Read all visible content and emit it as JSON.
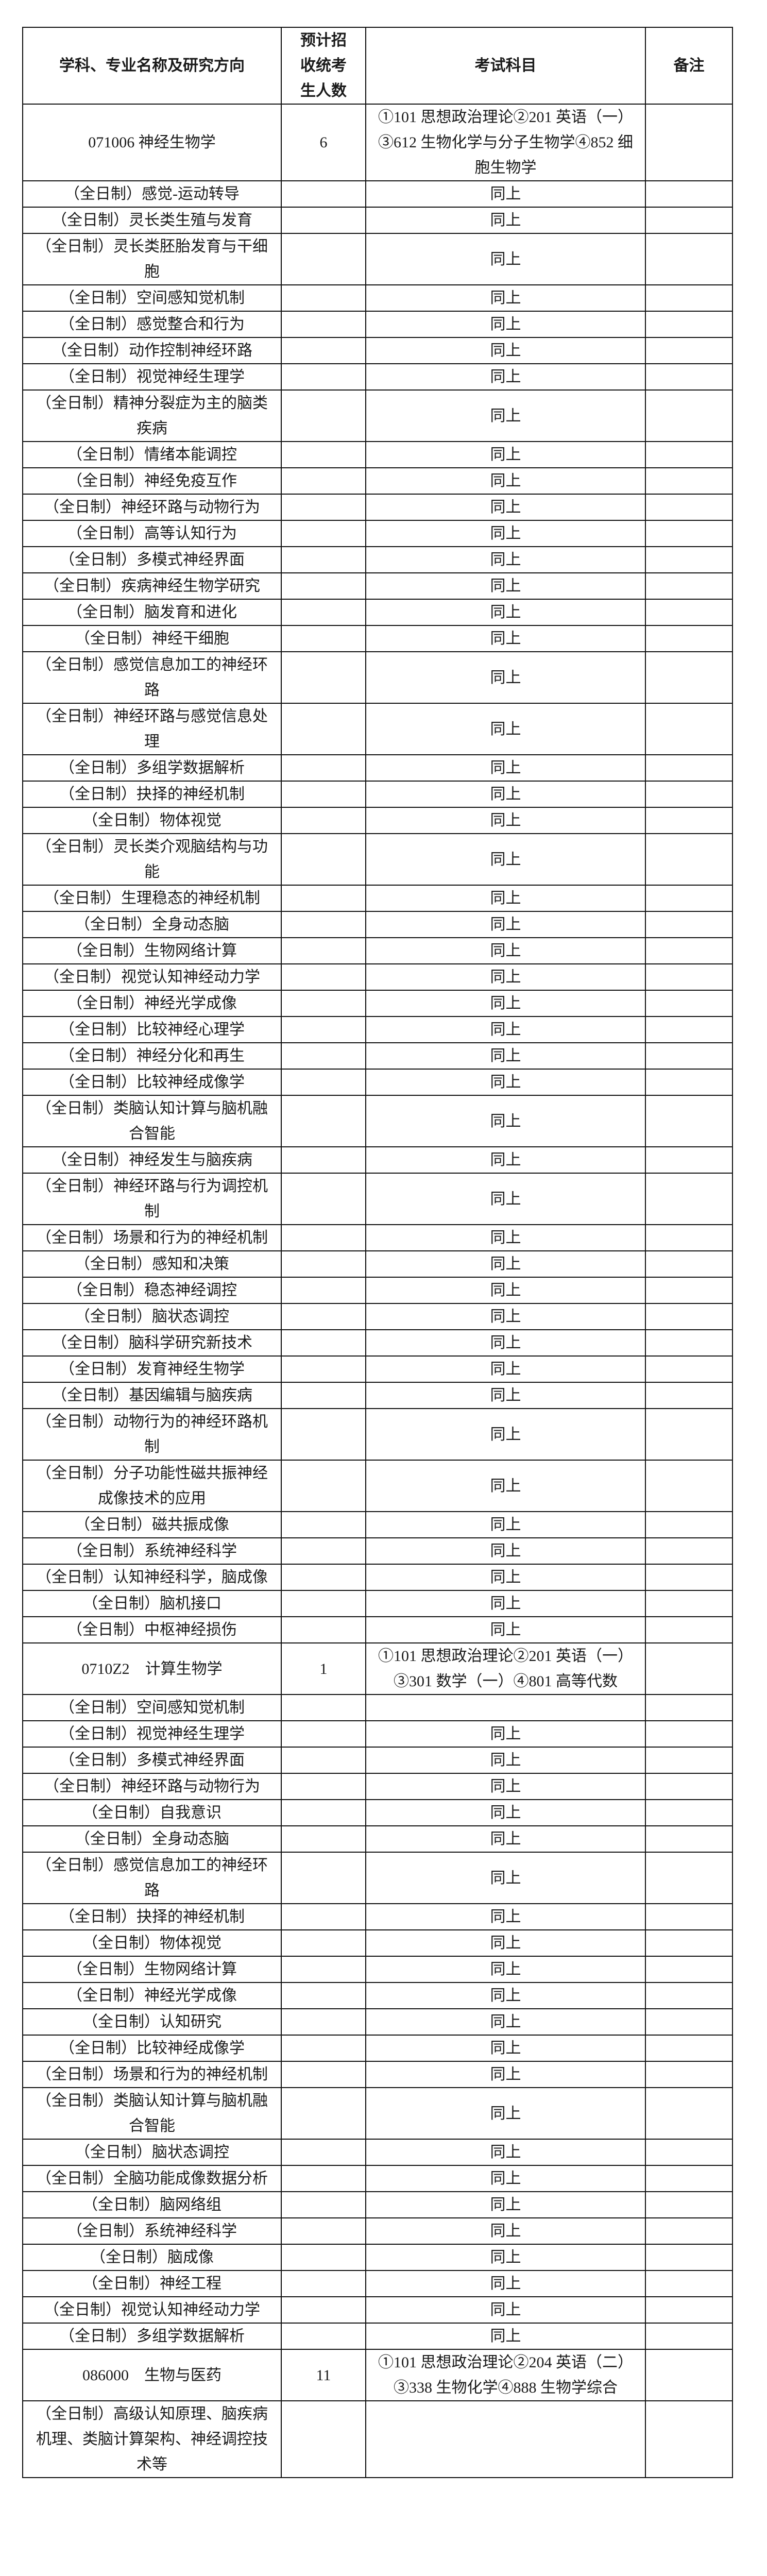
{
  "header": {
    "major": "学科、专业名称及研究方向",
    "count": "预计招收统考生人数",
    "exam": "考试科目",
    "note": "备注"
  },
  "rows": [
    {
      "name": "071006 神经生物学",
      "count": "6",
      "exam": "①101 思想政治理论②201 英语（一）③612 生物化学与分子生物学④852 细胞生物学"
    },
    {
      "name": "（全日制）感觉-运动转导",
      "exam": "同上"
    },
    {
      "name": "（全日制）灵长类生殖与发育",
      "exam": "同上"
    },
    {
      "name": "（全日制）灵长类胚胎发育与干细胞",
      "exam": "同上"
    },
    {
      "name": "（全日制）空间感知觉机制",
      "exam": "同上"
    },
    {
      "name": "（全日制）感觉整合和行为",
      "exam": "同上"
    },
    {
      "name": "（全日制）动作控制神经环路",
      "exam": "同上"
    },
    {
      "name": "（全日制）视觉神经生理学",
      "exam": "同上"
    },
    {
      "name": "（全日制）精神分裂症为主的脑类疾病",
      "exam": "同上"
    },
    {
      "name": "（全日制）情绪本能调控",
      "exam": "同上"
    },
    {
      "name": "（全日制）神经免疫互作",
      "exam": "同上"
    },
    {
      "name": "（全日制）神经环路与动物行为",
      "exam": "同上"
    },
    {
      "name": "（全日制）高等认知行为",
      "exam": "同上"
    },
    {
      "name": "（全日制）多模式神经界面",
      "exam": "同上"
    },
    {
      "name": "（全日制）疾病神经生物学研究",
      "exam": "同上"
    },
    {
      "name": "（全日制）脑发育和进化",
      "exam": "同上"
    },
    {
      "name": "（全日制）神经干细胞",
      "exam": "同上"
    },
    {
      "name": "（全日制）感觉信息加工的神经环路",
      "exam": "同上"
    },
    {
      "name": "（全日制）神经环路与感觉信息处理",
      "exam": "同上"
    },
    {
      "name": "（全日制）多组学数据解析",
      "exam": "同上"
    },
    {
      "name": "（全日制）抉择的神经机制",
      "exam": "同上"
    },
    {
      "name": "（全日制）物体视觉",
      "exam": "同上"
    },
    {
      "name": "（全日制）灵长类介观脑结构与功能",
      "exam": "同上"
    },
    {
      "name": "（全日制）生理稳态的神经机制",
      "exam": "同上"
    },
    {
      "name": "（全日制）全身动态脑",
      "exam": "同上"
    },
    {
      "name": "（全日制）生物网络计算",
      "exam": "同上"
    },
    {
      "name": "（全日制）视觉认知神经动力学",
      "exam": "同上"
    },
    {
      "name": "（全日制）神经光学成像",
      "exam": "同上"
    },
    {
      "name": "（全日制）比较神经心理学",
      "exam": "同上"
    },
    {
      "name": "（全日制）神经分化和再生",
      "exam": "同上"
    },
    {
      "name": "（全日制）比较神经成像学",
      "exam": "同上"
    },
    {
      "name": "（全日制）类脑认知计算与脑机融合智能",
      "exam": "同上"
    },
    {
      "name": "（全日制）神经发生与脑疾病",
      "exam": "同上"
    },
    {
      "name": "（全日制）神经环路与行为调控机制",
      "exam": "同上"
    },
    {
      "name": "（全日制）场景和行为的神经机制",
      "exam": "同上"
    },
    {
      "name": "（全日制）感知和决策",
      "exam": "同上"
    },
    {
      "name": "（全日制）稳态神经调控",
      "exam": "同上"
    },
    {
      "name": "（全日制）脑状态调控",
      "exam": "同上"
    },
    {
      "name": "（全日制）脑科学研究新技术",
      "exam": "同上"
    },
    {
      "name": "（全日制）发育神经生物学",
      "exam": "同上"
    },
    {
      "name": "（全日制）基因编辑与脑疾病",
      "exam": "同上"
    },
    {
      "name": "（全日制）动物行为的神经环路机制",
      "exam": "同上"
    },
    {
      "name": "（全日制）分子功能性磁共振神经成像技术的应用",
      "exam": "同上"
    },
    {
      "name": "（全日制）磁共振成像",
      "exam": "同上"
    },
    {
      "name": "（全日制）系统神经科学",
      "exam": "同上"
    },
    {
      "name": "（全日制）认知神经科学，脑成像",
      "exam": "同上"
    },
    {
      "name": "（全日制）脑机接口",
      "exam": "同上"
    },
    {
      "name": "（全日制）中枢神经损伤",
      "exam": "同上"
    },
    {
      "name": "0710Z2　计算生物学",
      "count": "1",
      "exam": "①101 思想政治理论②201 英语（一）③301 数学（一）④801 高等代数"
    },
    {
      "name": "（全日制）空间感知觉机制",
      "exam": ""
    },
    {
      "name": "（全日制）视觉神经生理学",
      "exam": "同上"
    },
    {
      "name": "（全日制）多模式神经界面",
      "exam": "同上"
    },
    {
      "name": "（全日制）神经环路与动物行为",
      "exam": "同上"
    },
    {
      "name": "（全日制）自我意识",
      "exam": "同上"
    },
    {
      "name": "（全日制）全身动态脑",
      "exam": "同上"
    },
    {
      "name": "（全日制）感觉信息加工的神经环路",
      "exam": "同上"
    },
    {
      "name": "（全日制）抉择的神经机制",
      "exam": "同上"
    },
    {
      "name": "（全日制）物体视觉",
      "exam": "同上"
    },
    {
      "name": "（全日制）生物网络计算",
      "exam": "同上"
    },
    {
      "name": "（全日制）神经光学成像",
      "exam": "同上"
    },
    {
      "name": "（全日制）认知研究",
      "exam": "同上"
    },
    {
      "name": "（全日制）比较神经成像学",
      "exam": "同上"
    },
    {
      "name": "（全日制）场景和行为的神经机制",
      "exam": "同上"
    },
    {
      "name": "（全日制）类脑认知计算与脑机融合智能",
      "exam": "同上"
    },
    {
      "name": "（全日制）脑状态调控",
      "exam": "同上"
    },
    {
      "name": "（全日制）全脑功能成像数据分析",
      "exam": "同上"
    },
    {
      "name": "（全日制）脑网络组",
      "exam": "同上"
    },
    {
      "name": "（全日制）系统神经科学",
      "exam": "同上"
    },
    {
      "name": "（全日制）脑成像",
      "exam": "同上"
    },
    {
      "name": "（全日制）神经工程",
      "exam": "同上"
    },
    {
      "name": "（全日制）视觉认知神经动力学",
      "exam": "同上"
    },
    {
      "name": "（全日制）多组学数据解析",
      "exam": "同上"
    },
    {
      "name": "086000　生物与医药",
      "count": "11",
      "exam": "①101 思想政治理论②204 英语（二）③338 生物化学④888 生物学综合"
    },
    {
      "name": "（全日制）高级认知原理、脑疾病机理、类脑计算架构、神经调控技术等",
      "exam": ""
    }
  ]
}
